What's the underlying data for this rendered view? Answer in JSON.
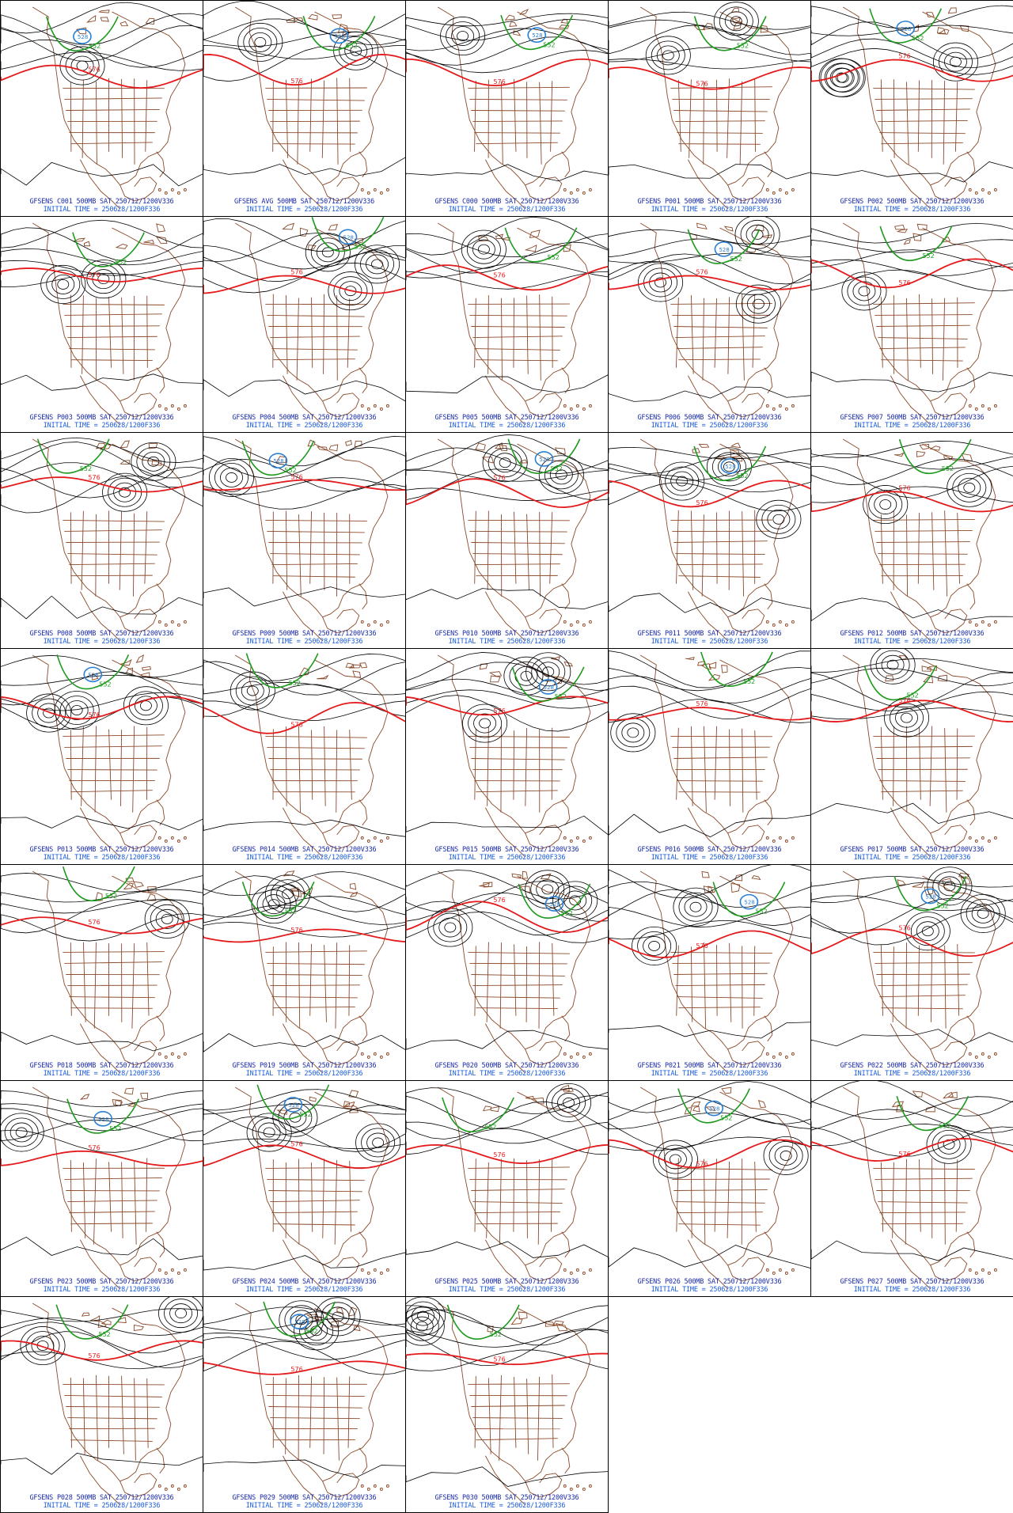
{
  "colors": {
    "border": "#000000",
    "geography": "#8b4a2a",
    "contour": "#000000",
    "line_576": "#e41a1c",
    "line_552": "#1f9a1f",
    "line_528": "#2a7fd4",
    "caption1": "#1a2aa8",
    "caption2": "#1a5bd8"
  },
  "layout": {
    "columns": 5,
    "rows": 7
  },
  "panels": [
    {
      "title": "GFSENS C001 500MB SAT 250712/1200V336",
      "time": "INITIAL TIME = 250628/1200F336"
    },
    {
      "title": "GFSENS AVG 500MB SAT 250712/1200V336",
      "time": "INITIAL TIME = 250628/1200F336"
    },
    {
      "title": "GFSENS C000 500MB SAT 250712/1200V336",
      "time": "INITIAL TIME = 250628/1200F336"
    },
    {
      "title": "GFSENS P001 500MB SAT 250712/1200V336",
      "time": "INITIAL TIME = 250628/1200F336"
    },
    {
      "title": "GFSENS P002 500MB SAT 250712/1200V336",
      "time": "INITIAL TIME = 250628/1200F336"
    },
    {
      "title": "GFSENS P003 500MB SAT 250712/1200V336",
      "time": "INITIAL TIME = 250628/1200F336"
    },
    {
      "title": "GFSENS P004 500MB SAT 250712/1200V336",
      "time": "INITIAL TIME = 250628/1200F336"
    },
    {
      "title": "GFSENS P005 500MB SAT 250712/1200V336",
      "time": "INITIAL TIME = 250628/1200F336"
    },
    {
      "title": "GFSENS P006 500MB SAT 250712/1200V336",
      "time": "INITIAL TIME = 250628/1200F336"
    },
    {
      "title": "GFSENS P007 500MB SAT 250712/1200V336",
      "time": "INITIAL TIME = 250628/1200F336"
    },
    {
      "title": "GFSENS P008 500MB SAT 250712/1200V336",
      "time": "INITIAL TIME = 250628/1200F336"
    },
    {
      "title": "GFSENS P009 500MB SAT 250712/1200V336",
      "time": "INITIAL TIME = 250628/1200F336"
    },
    {
      "title": "GFSENS P010 500MB SAT 250712/1200V336",
      "time": "INITIAL TIME = 250628/1200F336"
    },
    {
      "title": "GFSENS P011 500MB SAT 250712/1200V336",
      "time": "INITIAL TIME = 250628/1200F336"
    },
    {
      "title": "GFSENS P012 500MB SAT 250712/1200V336",
      "time": "INITIAL TIME = 250628/1200F336"
    },
    {
      "title": "GFSENS P013 500MB SAT 250712/1200V336",
      "time": "INITIAL TIME = 250628/1200F336"
    },
    {
      "title": "GFSENS P014 500MB SAT 250712/1200V336",
      "time": "INITIAL TIME = 250628/1200F336"
    },
    {
      "title": "GFSENS P015 500MB SAT 250712/1200V336",
      "time": "INITIAL TIME = 250628/1200F336"
    },
    {
      "title": "GFSENS P016 500MB SAT 250712/1200V336",
      "time": "INITIAL TIME = 250628/1200F336"
    },
    {
      "title": "GFSENS P017 500MB SAT 250712/1200V336",
      "time": "INITIAL TIME = 250628/1200F336"
    },
    {
      "title": "GFSENS P018 500MB SAT 250712/1200V336",
      "time": "INITIAL TIME = 250628/1200F336"
    },
    {
      "title": "GFSENS P019 500MB SAT 250712/1200V336",
      "time": "INITIAL TIME = 250628/1200F336"
    },
    {
      "title": "GFSENS P020 500MB SAT 250712/1200V336",
      "time": "INITIAL TIME = 250628/1200F336"
    },
    {
      "title": "GFSENS P021 500MB SAT 250712/1200V336",
      "time": "INITIAL TIME = 250628/1200F336"
    },
    {
      "title": "GFSENS P022 500MB SAT 250712/1200V336",
      "time": "INITIAL TIME = 250628/1200F336"
    },
    {
      "title": "GFSENS P023 500MB SAT 250712/1200V336",
      "time": "INITIAL TIME = 250628/1200F336"
    },
    {
      "title": "GFSENS P024 500MB SAT 250712/1200V336",
      "time": "INITIAL TIME = 250628/1200F336"
    },
    {
      "title": "GFSENS P025 500MB SAT 250712/1200V336",
      "time": "INITIAL TIME = 250628/1200F336"
    },
    {
      "title": "GFSENS P026 500MB SAT 250712/1200V336",
      "time": "INITIAL TIME = 250628/1200F336"
    },
    {
      "title": "GFSENS P027 500MB SAT 250712/1200V336",
      "time": "INITIAL TIME = 250628/1200F336"
    },
    {
      "title": "GFSENS P028 500MB SAT 250712/1200V336",
      "time": "INITIAL TIME = 250628/1200F336"
    },
    {
      "title": "GFSENS P029 500MB SAT 250712/1200V336",
      "time": "INITIAL TIME = 250628/1200F336"
    },
    {
      "title": "GFSENS P030 500MB SAT 250712/1200V336",
      "time": "INITIAL TIME = 250628/1200F336"
    }
  ],
  "contour_labels": {
    "red": "576",
    "green": "552",
    "blue": "528"
  }
}
